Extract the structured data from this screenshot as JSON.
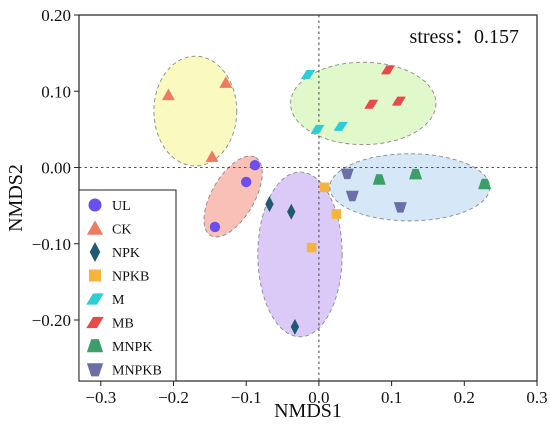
{
  "chart_data": {
    "type": "scatter",
    "xlabel": "NMDS1",
    "ylabel": "NMDS2",
    "xlim": [
      -0.33,
      0.3
    ],
    "ylim": [
      -0.28,
      0.2
    ],
    "xticks": [
      -0.3,
      -0.2,
      -0.1,
      0.0,
      0.1,
      0.2,
      0.3
    ],
    "yticks": [
      0.2,
      0.1,
      0.0,
      -0.1,
      -0.2
    ],
    "xtick_labels": [
      "−0.3",
      "−0.2",
      "−0.1",
      "0.0",
      "0.1",
      "0.2",
      "0.3"
    ],
    "ytick_labels": [
      "0.20",
      "0.10",
      "0.00",
      "−0.10",
      "−0.20"
    ],
    "reference_lines": {
      "x": 0,
      "y": 0,
      "style": "dotted"
    },
    "annotation": {
      "label": "stress：",
      "value": "0.157",
      "position": "top-right"
    },
    "legend_position": "bottom-left",
    "series": [
      {
        "name": "UL",
        "marker": "circle",
        "color": "#6b4df0",
        "x": [
          -0.088,
          -0.1,
          -0.143
        ],
        "y": [
          0.003,
          -0.019,
          -0.078
        ],
        "ellipse": {
          "cx": -0.118,
          "cy": -0.038,
          "rx": 0.062,
          "ry": 0.028,
          "angle_deg": 60,
          "fill": "#f7a89b"
        }
      },
      {
        "name": "CK",
        "marker": "triangle",
        "color": "#f07a61",
        "x": [
          -0.207,
          -0.128,
          -0.147
        ],
        "y": [
          0.095,
          0.111,
          0.014
        ],
        "ellipse": {
          "cx": -0.17,
          "cy": 0.074,
          "rx": 0.057,
          "ry": 0.072,
          "angle_deg": 0,
          "fill": "#f7f7a8"
        }
      },
      {
        "name": "NPK",
        "marker": "diamond",
        "color": "#1f5a73",
        "x": [
          -0.068,
          -0.038,
          -0.033
        ],
        "y": [
          -0.048,
          -0.058,
          -0.209
        ],
        "ellipse": {
          "cx": -0.026,
          "cy": -0.114,
          "rx": 0.058,
          "ry": 0.108,
          "angle_deg": 0,
          "fill": "#cdb6f5"
        }
      },
      {
        "name": "NPKB",
        "marker": "square",
        "color": "#f7b43c",
        "x": [
          0.008,
          0.024,
          -0.01
        ],
        "y": [
          -0.026,
          -0.061,
          -0.105
        ]
      },
      {
        "name": "M",
        "marker": "parallelogram",
        "color": "#2ccdd3",
        "x": [
          -0.015,
          0.03,
          -0.002
        ],
        "y": [
          0.122,
          0.054,
          0.05
        ],
        "ellipse": {
          "cx": 0.061,
          "cy": 0.084,
          "rx": 0.1,
          "ry": 0.054,
          "angle_deg": 0,
          "fill": "#d4f5b6"
        }
      },
      {
        "name": "MB",
        "marker": "parallelogram",
        "color": "#e8494a",
        "x": [
          0.095,
          0.11,
          0.072
        ],
        "y": [
          0.128,
          0.087,
          0.083
        ]
      },
      {
        "name": "MNPK",
        "marker": "trapezoid",
        "color": "#3e9e6a",
        "x": [
          0.083,
          0.133,
          0.228
        ],
        "y": [
          -0.016,
          -0.009,
          -0.022
        ],
        "ellipse": {
          "cx": 0.125,
          "cy": -0.026,
          "rx": 0.11,
          "ry": 0.044,
          "angle_deg": 0,
          "fill": "#c6def5"
        }
      },
      {
        "name": "MNPKB",
        "marker": "inv-trapezoid",
        "color": "#6b6fa6",
        "x": [
          0.039,
          0.046,
          0.112
        ],
        "y": [
          -0.008,
          -0.037,
          -0.052
        ]
      }
    ]
  }
}
